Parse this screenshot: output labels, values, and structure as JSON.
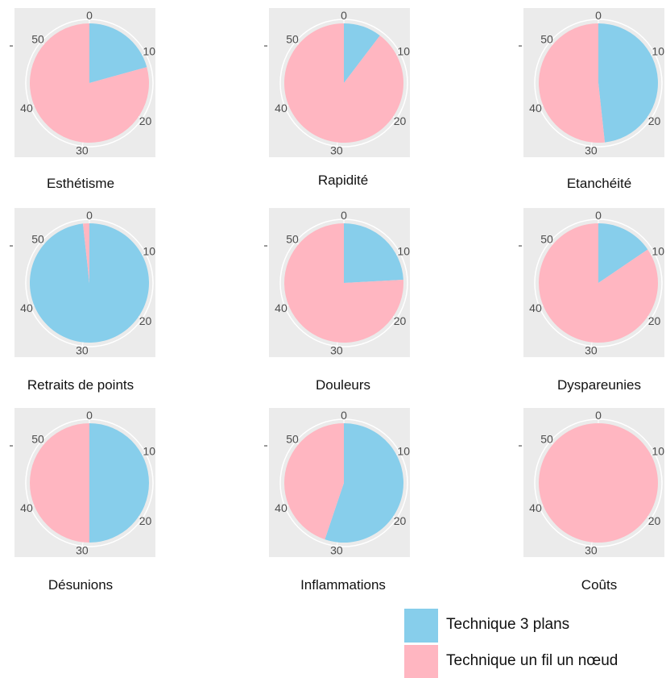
{
  "colors": {
    "panel_background": "#EBEBEB",
    "grid": "#FFFFFF",
    "tick_text": "#4D4D4D",
    "blue": "#87CEEB",
    "pink": "#FFB6C1"
  },
  "axis": {
    "ticks": [
      "0",
      "10",
      "20",
      "30",
      "40",
      "50"
    ],
    "full_scale": 58
  },
  "legend": {
    "items": [
      {
        "label": "Technique 3 plans",
        "color": "#87CEEB"
      },
      {
        "label": "Technique un fil un nœud",
        "color": "#FFB6C1"
      }
    ]
  },
  "chart_data": [
    {
      "type": "pie",
      "title": "Esthétisme",
      "categories": [
        "Technique 3 plans",
        "Technique un fil un nœud"
      ],
      "values": [
        12,
        46
      ]
    },
    {
      "type": "pie",
      "title": "Rapidité",
      "categories": [
        "Technique 3 plans",
        "Technique un fil un nœud"
      ],
      "values": [
        6,
        52
      ]
    },
    {
      "type": "pie",
      "title": "Etanchéité",
      "categories": [
        "Technique 3 plans",
        "Technique un fil un nœud"
      ],
      "values": [
        28,
        30
      ]
    },
    {
      "type": "pie",
      "title": "Retraits de points",
      "categories": [
        "Technique 3 plans",
        "Technique un fil un nœud"
      ],
      "values": [
        57,
        1
      ]
    },
    {
      "type": "pie",
      "title": "Douleurs",
      "categories": [
        "Technique 3 plans",
        "Technique un fil un nœud"
      ],
      "values": [
        14,
        44
      ]
    },
    {
      "type": "pie",
      "title": "Dyspareunies",
      "categories": [
        "Technique 3 plans",
        "Technique un fil un nœud"
      ],
      "values": [
        9,
        49
      ]
    },
    {
      "type": "pie",
      "title": "Désunions",
      "categories": [
        "Technique 3 plans",
        "Technique un fil un nœud"
      ],
      "values": [
        29,
        29
      ]
    },
    {
      "type": "pie",
      "title": "Inflammations",
      "categories": [
        "Technique 3 plans",
        "Technique un fil un nœud"
      ],
      "values": [
        32,
        26
      ]
    },
    {
      "type": "pie",
      "title": "Coûts",
      "categories": [
        "Technique 3 plans",
        "Technique un fil un nœud"
      ],
      "values": [
        0,
        58
      ]
    }
  ]
}
